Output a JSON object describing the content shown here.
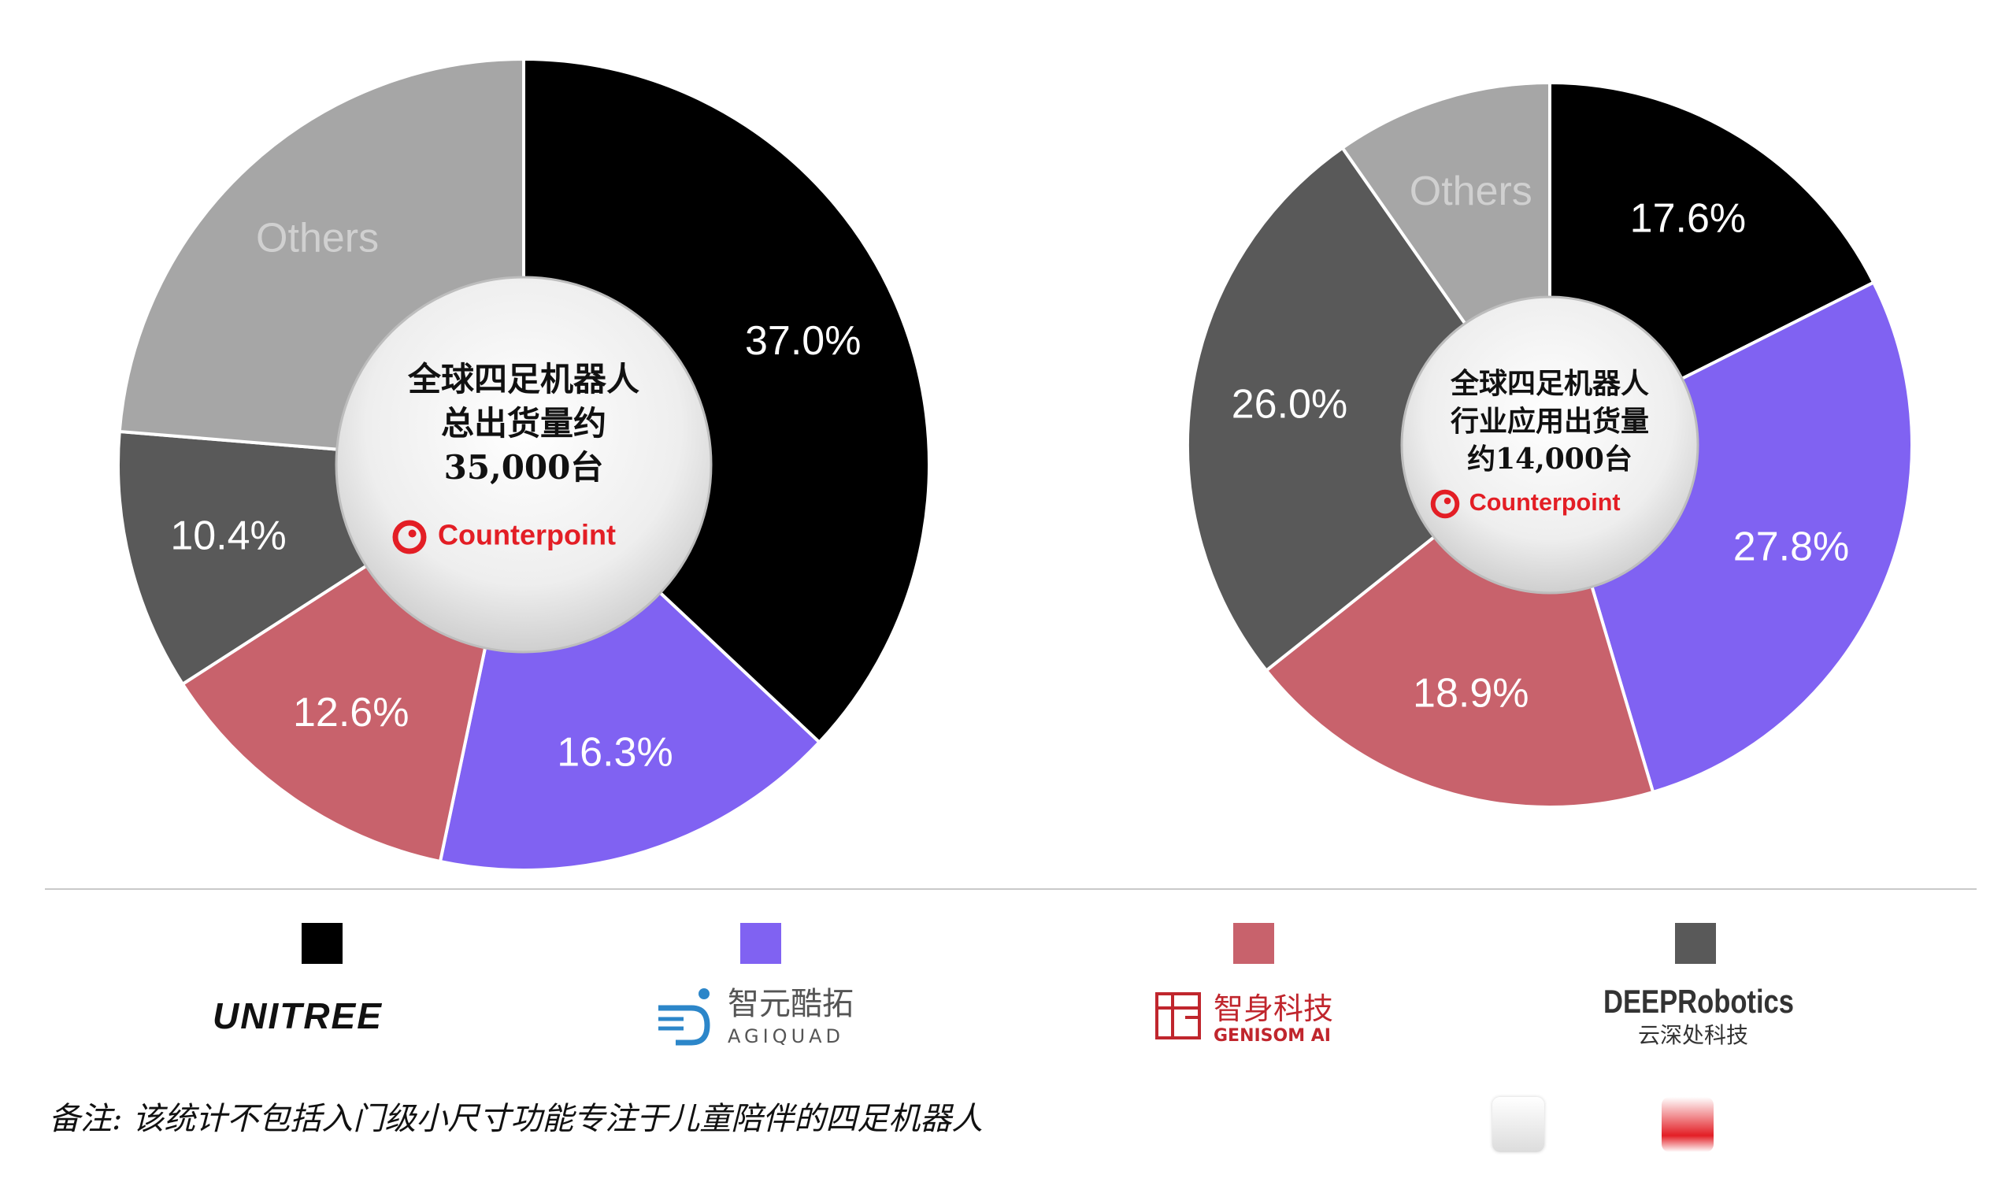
{
  "chart_data": [
    {
      "type": "pie",
      "center_label": {
        "lines": [
          "全球四足机器人",
          "总出货量约",
          "35,000台"
        ],
        "logo_text": "Counterpoint"
      },
      "slices": [
        {
          "label": "37.0%",
          "value": 37.0,
          "color": "#000000"
        },
        {
          "label": "16.3%",
          "value": 16.3,
          "color": "#8062f2"
        },
        {
          "label": "12.6%",
          "value": 12.6,
          "color": "#c8626c"
        },
        {
          "label": "10.4%",
          "value": 10.4,
          "color": "#595959"
        },
        {
          "label": "Others",
          "value": 23.7,
          "color": "#a6a6a6"
        }
      ]
    },
    {
      "type": "pie",
      "center_label": {
        "lines": [
          "全球四足机器人",
          "行业应用出货量",
          "约14,000台"
        ],
        "logo_text": "Counterpoint"
      },
      "slices": [
        {
          "label": "17.6%",
          "value": 17.6,
          "color": "#000000"
        },
        {
          "label": "27.8%",
          "value": 27.8,
          "color": "#8062f2"
        },
        {
          "label": "18.9%",
          "value": 18.9,
          "color": "#c8626c"
        },
        {
          "label": "26.0%",
          "value": 26.0,
          "color": "#595959"
        },
        {
          "label": "Others",
          "value": 9.7,
          "color": "#a6a6a6"
        }
      ]
    }
  ],
  "legend": [
    {
      "color": "#000000",
      "brand": "UNITREE",
      "sub": ""
    },
    {
      "color": "#8062f2",
      "brand": "智元酷拓",
      "sub": "AGIQUAD"
    },
    {
      "color": "#c8626c",
      "brand": "智身科技",
      "sub": "GENISOM AI"
    },
    {
      "color": "#595959",
      "brand": "DEEPRobotics",
      "sub": "云深处科技"
    }
  ],
  "footnote": "备注: 该统计不包括入门级小尺寸功能专注于儿童陪伴的四足机器人",
  "colors": {
    "accent": "#e31e25",
    "divider": "#c9c9c9"
  }
}
